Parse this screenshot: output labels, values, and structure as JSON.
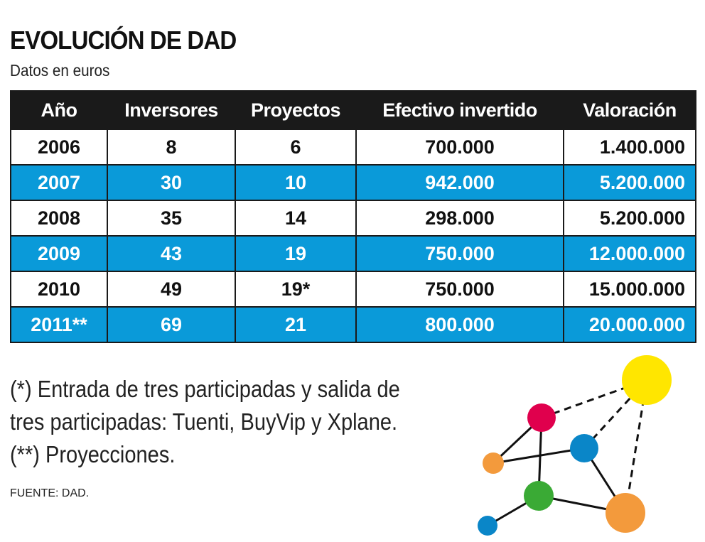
{
  "header": {
    "title": "EVOLUCIÓN DE DAD",
    "subtitle": "Datos en euros"
  },
  "table": {
    "headers": [
      "Año",
      "Inversores",
      "Proyectos",
      "Efectivo invertido",
      "Valoración"
    ],
    "rows": [
      [
        "2006",
        "8",
        "6",
        "700.000",
        "1.400.000"
      ],
      [
        "2007",
        "30",
        "10",
        "942.000",
        "5.200.000"
      ],
      [
        "2008",
        "35",
        "14",
        "298.000",
        "5.200.000"
      ],
      [
        "2009",
        "43",
        "19",
        "750.000",
        "12.000.000"
      ],
      [
        "2010",
        "49",
        "19*",
        "750.000",
        "15.000.000"
      ],
      [
        "2011**",
        "69",
        "21",
        "800.000",
        "20.000.000"
      ]
    ]
  },
  "notes": [
    "(*) Entrada de tres participadas y salida de",
    "tres participadas: Tuenti, BuyVip y Xplane.",
    "(**) Proyecciones."
  ],
  "source": "FUENTE: DAD."
}
